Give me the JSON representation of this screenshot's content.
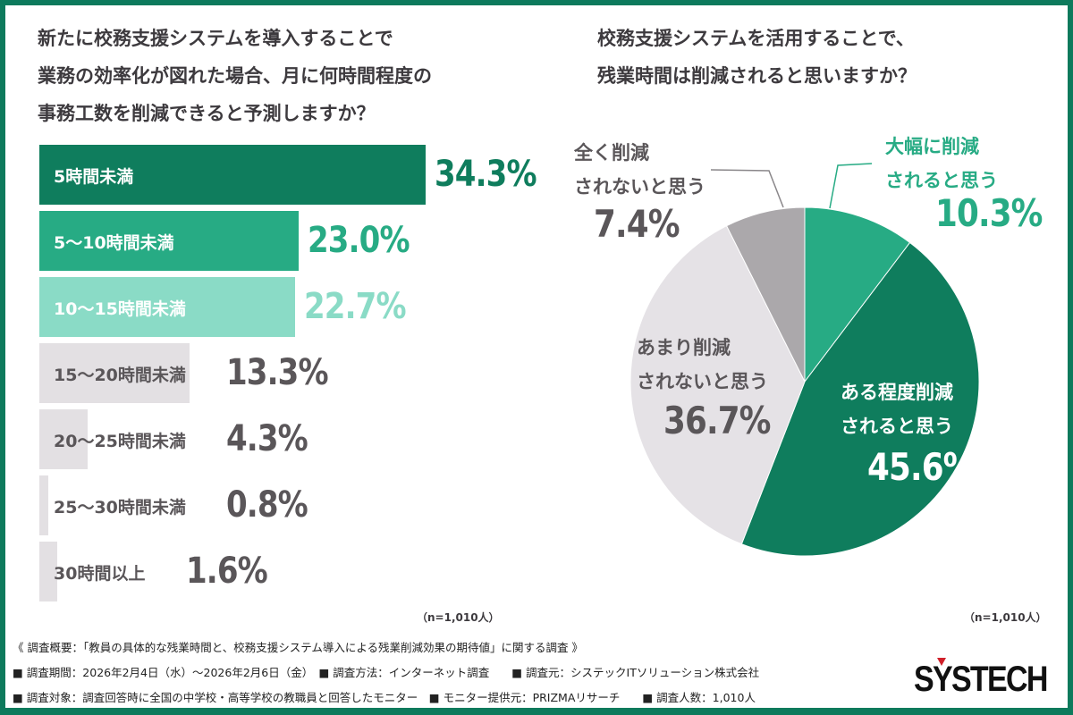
{
  "colors": {
    "frame": "#0d7a5c",
    "dark_green": "#0f7d5d",
    "green": "#27ab84",
    "mint": "#8adbc6",
    "gray_bar": "#e3e0e3",
    "text_gray": "#5a5659",
    "pie_gray": "#aba8ab",
    "pie_light": "#e5e2e6"
  },
  "chart_data": [
    {
      "type": "bar",
      "orientation": "horizontal",
      "title": "新たに校務支援システムを導入することで\n業務の効率化が図れた場合、月に何時間程度の\n事務工数を削減できると予測しますか？",
      "categories": [
        "5時間未満",
        "5～10時間未満",
        "10～15時間未満",
        "15～20時間未満",
        "20～25時間未満",
        "25～30時間未満",
        "30時間以上"
      ],
      "values": [
        34.3,
        23.0,
        22.7,
        13.3,
        4.3,
        0.8,
        1.6
      ],
      "value_labels": [
        "34.3%",
        "23.0%",
        "22.7%",
        "13.3%",
        "4.3%",
        "0.8%",
        "1.6%"
      ],
      "note": "（n=1,010人）"
    },
    {
      "type": "pie",
      "title": "校務支援システムを活用することで、\n残業時間は削減されると思いますか？",
      "slices": [
        {
          "label": "大幅に削減\nされると思う",
          "value": 10.3,
          "value_label": "10.3%",
          "color": "#27ab84"
        },
        {
          "label": "ある程度削減\nされると思う",
          "value": 45.6,
          "value_label": "45.6%",
          "color": "#0f7d5d"
        },
        {
          "label": "あまり削減\nされないと思う",
          "value": 36.7,
          "value_label": "36.7%",
          "color": "#e5e2e6"
        },
        {
          "label": "全く削減\nされないと思う",
          "value": 7.4,
          "value_label": "7.4%",
          "color": "#aba8ab"
        }
      ],
      "start": "top",
      "direction": "clockwise",
      "note": "（n=1,010人）"
    }
  ],
  "footer": {
    "line1": "《 調査概要：「教員の具体的な残業時間と、校務支援システム導入による残業削減効果の期待値」に関する調査 》",
    "line2": "■ 調査期間：2026年2月4日（水）～2026年2月6日（金）　■ 調査方法：インターネット調査　　■ 調査元：システックITソリューション株式会社",
    "line3": "■ 調査対象：調査回答時に全国の中学校・高等学校の教職員と回答したモニター　■ モニター提供元：PRIZMAリサーチ　　■ 調査人数：1,010人",
    "logo": "SYSTECH"
  }
}
